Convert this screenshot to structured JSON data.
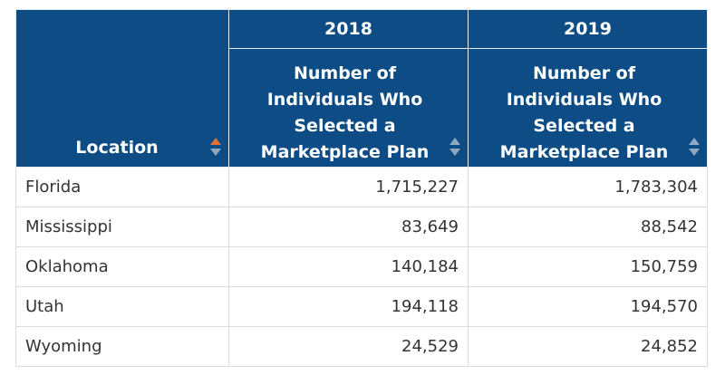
{
  "table": {
    "years": [
      "2018",
      "2019"
    ],
    "location_header": "Location",
    "metric_header": "Number of Individuals Who Selected a Marketplace Plan",
    "rows": [
      {
        "location": "Florida",
        "v2018": "1,715,227",
        "v2019": "1,783,304"
      },
      {
        "location": "Mississippi",
        "v2018": "83,649",
        "v2019": "88,542"
      },
      {
        "location": "Oklahoma",
        "v2018": "140,184",
        "v2019": "150,759"
      },
      {
        "location": "Utah",
        "v2018": "194,118",
        "v2019": "194,570"
      },
      {
        "location": "Wyoming",
        "v2018": "24,529",
        "v2019": "24,852"
      }
    ]
  },
  "colors": {
    "header_bg": "#0d4c84",
    "sort_active": "#e2703a",
    "sort_inactive": "#8fa8c0"
  }
}
